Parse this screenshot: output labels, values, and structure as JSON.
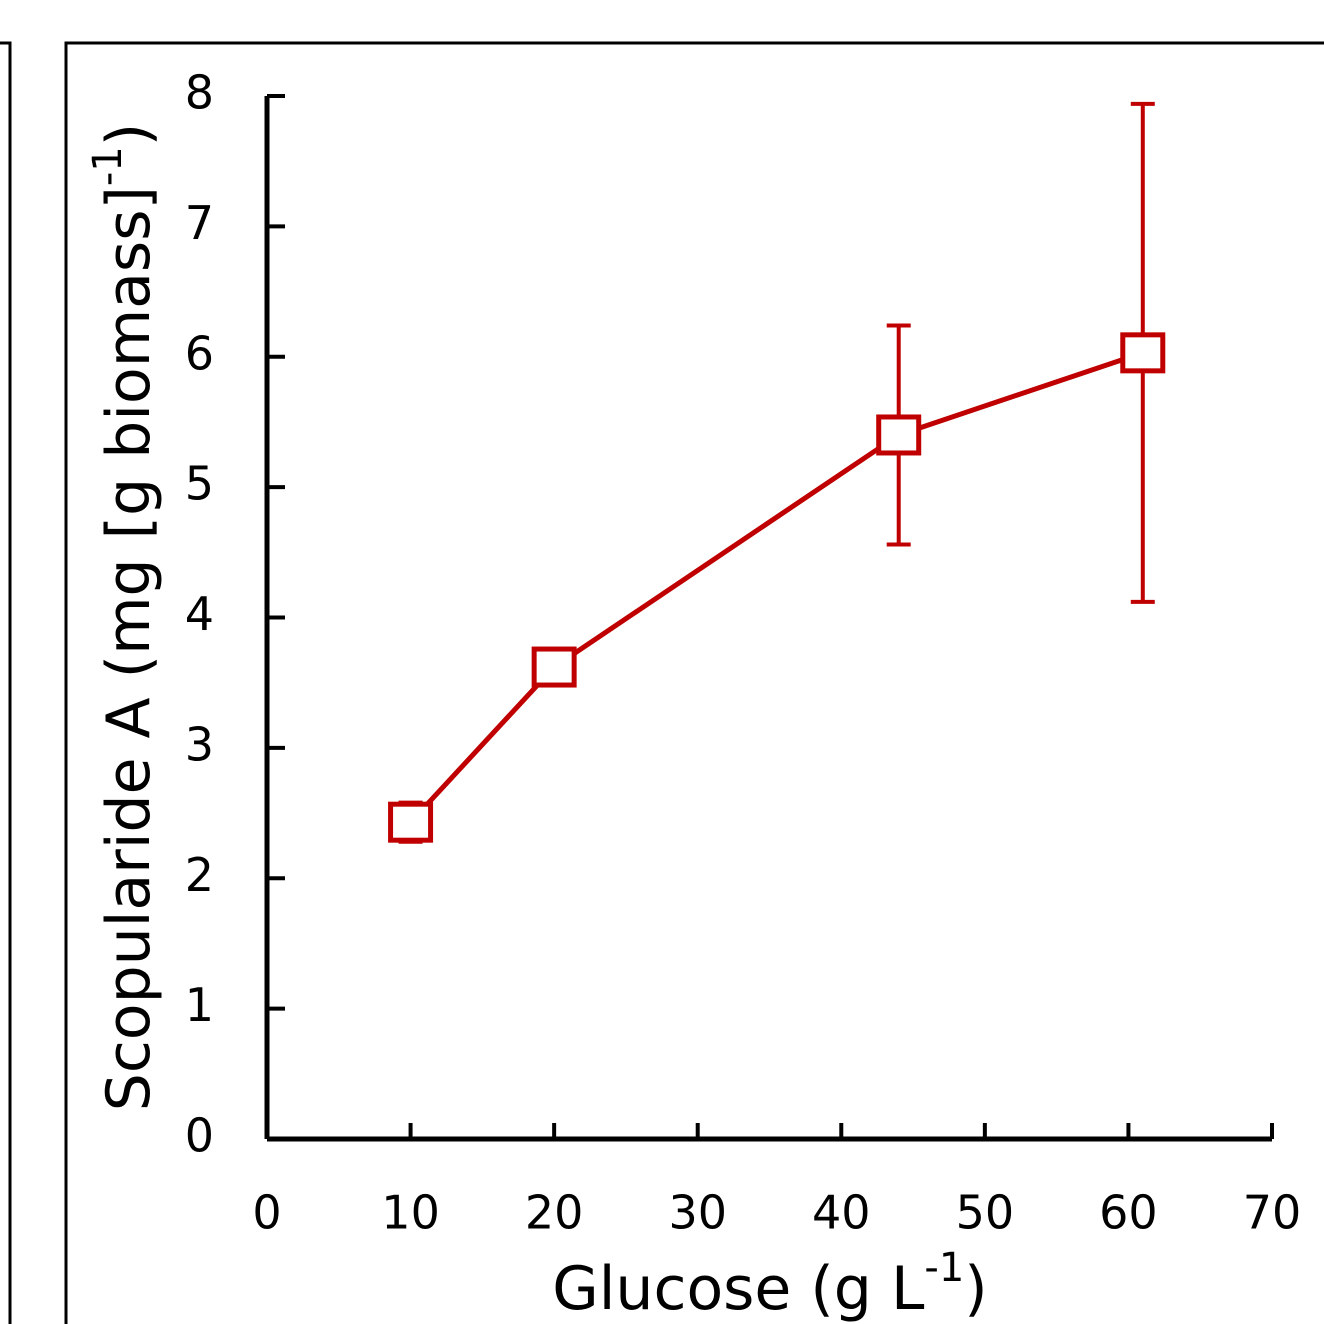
{
  "chart_data": {
    "type": "line",
    "xlabel": [
      "Glucose (g L",
      "-1",
      ")"
    ],
    "ylabel": [
      "Scopularide A (mg [g biomass]",
      "-1",
      ")"
    ],
    "x": [
      10,
      20,
      44,
      61
    ],
    "series": [
      {
        "color": "#c00000",
        "values": [
          2.43,
          3.62,
          5.4,
          6.03
        ],
        "errors": [
          0.15,
          0.05,
          0.84,
          1.91
        ]
      }
    ],
    "xlim": [
      0,
      70
    ],
    "xticks": [
      0,
      10,
      20,
      30,
      40,
      50,
      60,
      70
    ],
    "ylim": [
      0,
      8
    ],
    "yticks": [
      0,
      1,
      2,
      3,
      4,
      5,
      6,
      7,
      8
    ],
    "grid": false
  }
}
